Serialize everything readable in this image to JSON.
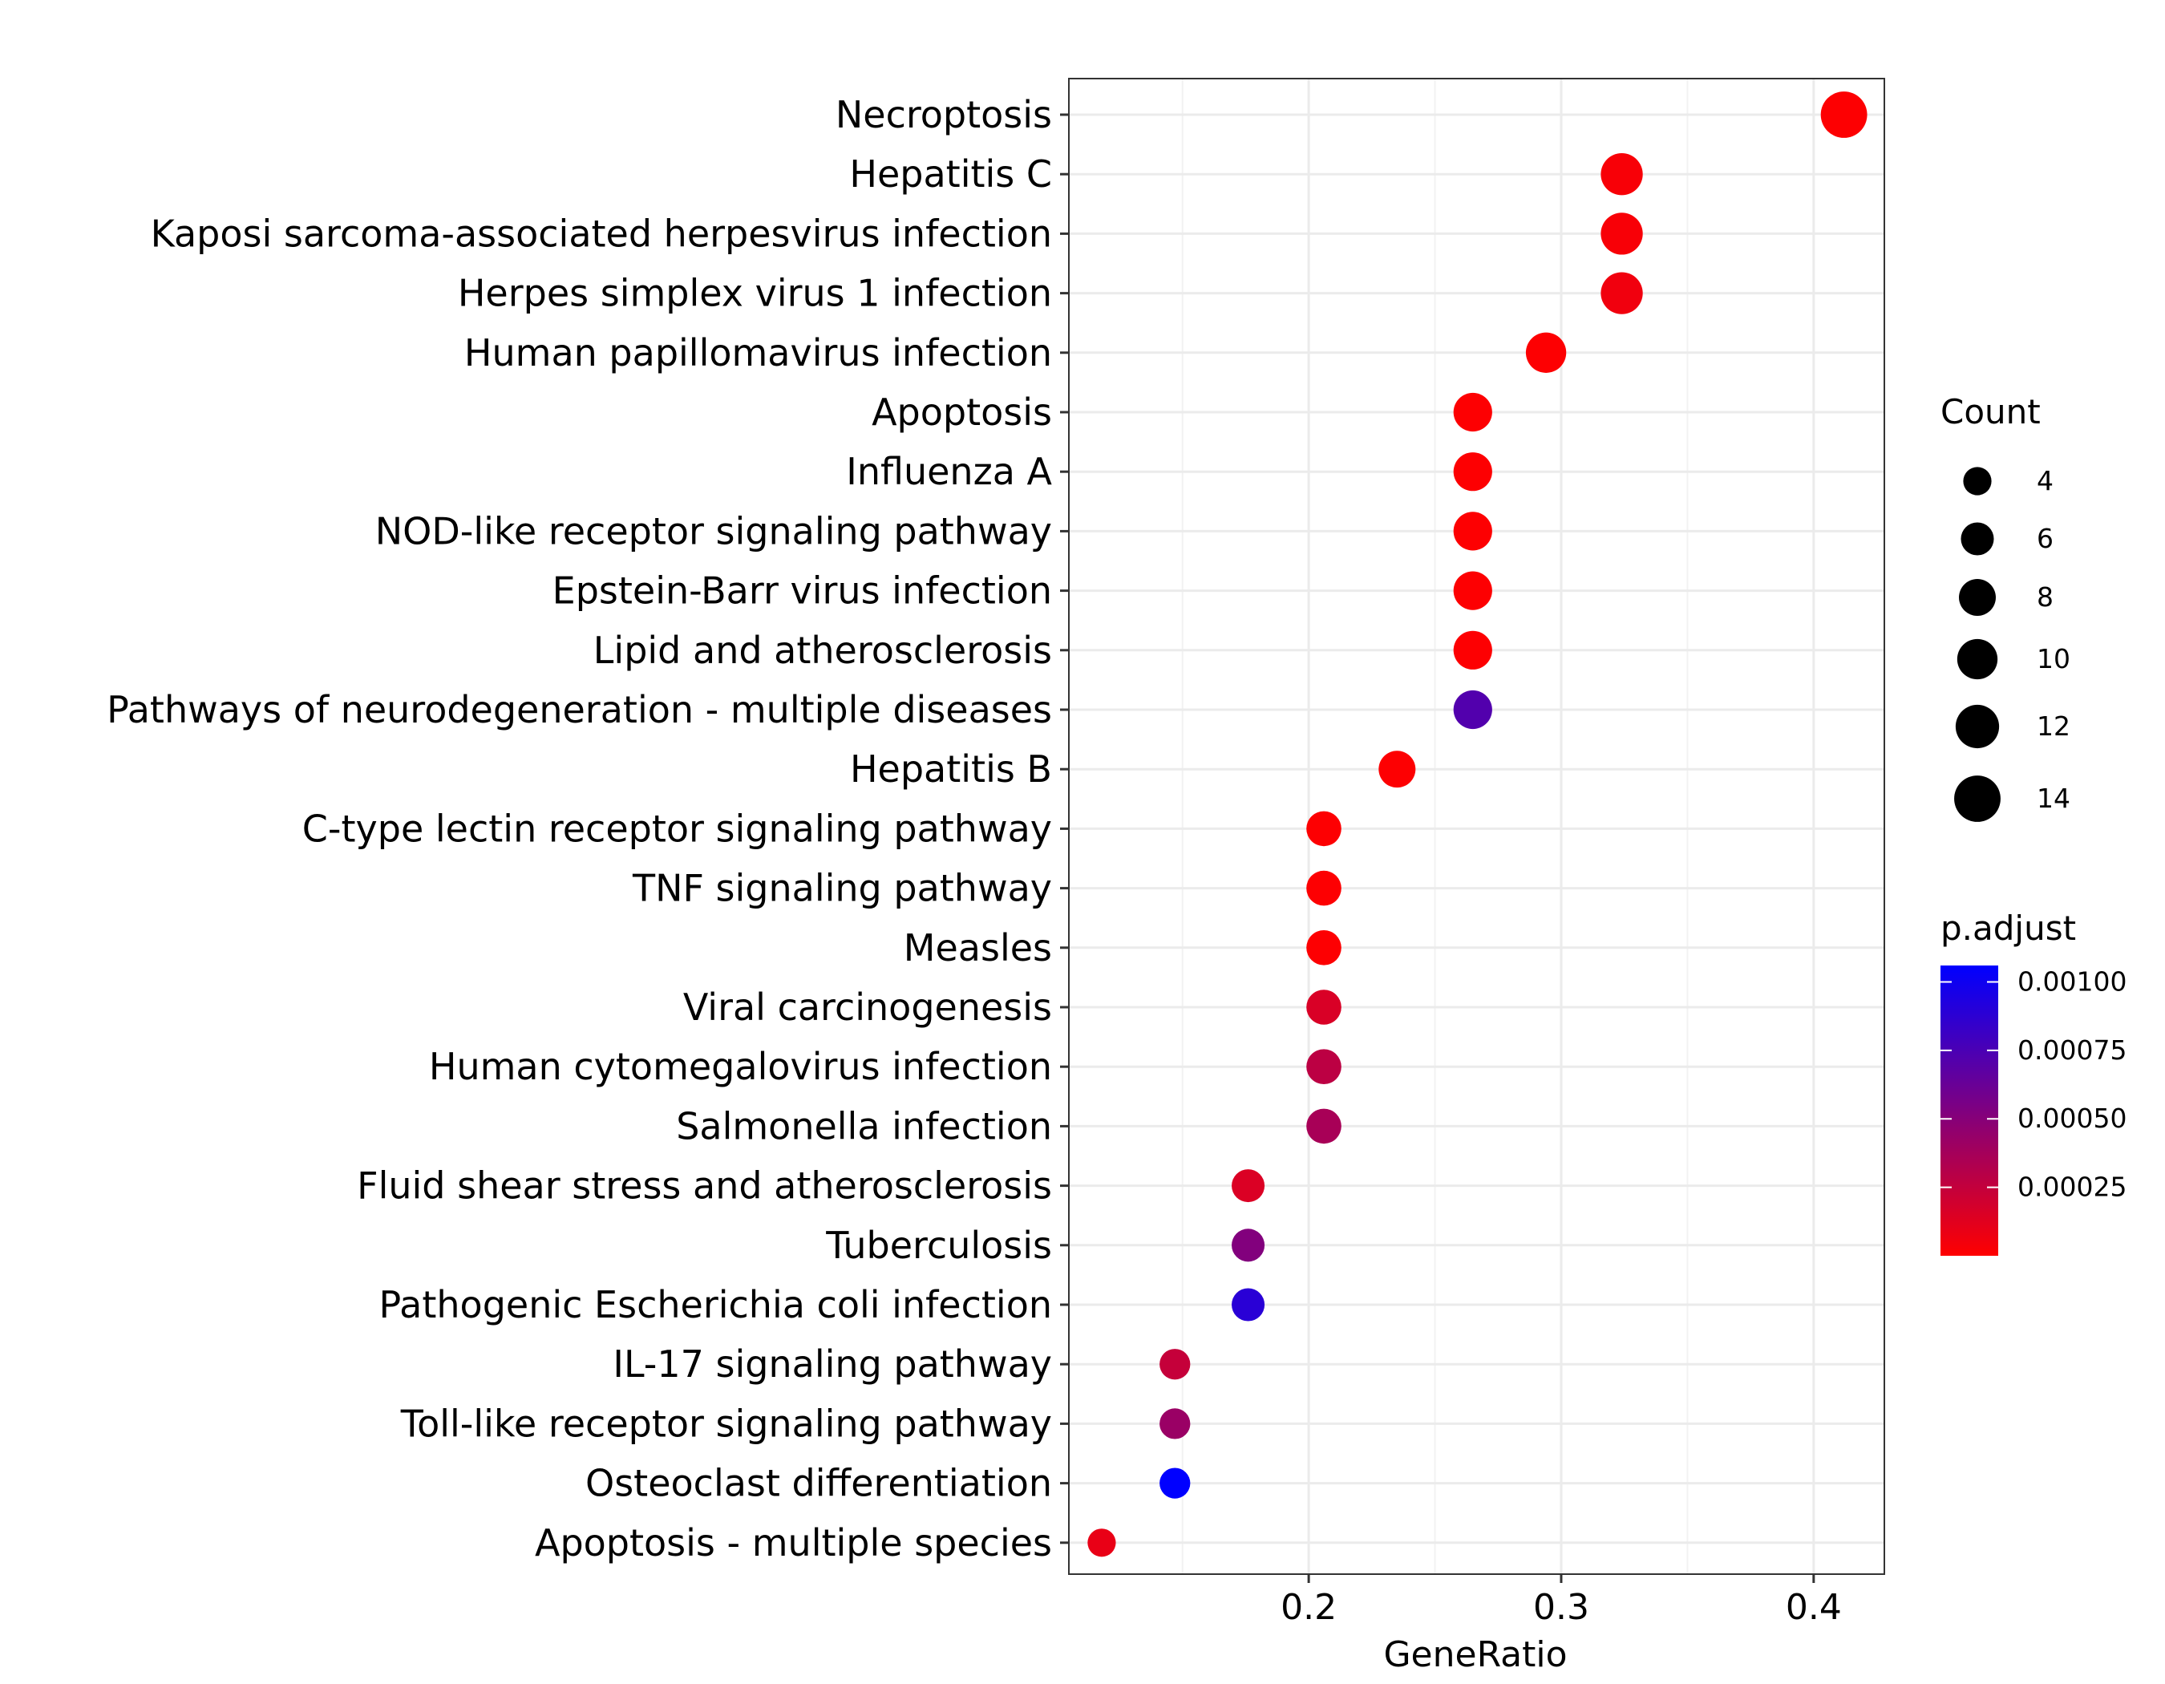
{
  "chart_data": {
    "type": "scatter",
    "xlabel": "GeneRatio",
    "xlim": [
      0.105,
      0.428
    ],
    "xticks": [
      0.2,
      0.3,
      0.4
    ],
    "xtick_labels": [
      "0.2",
      "0.3",
      "0.4"
    ],
    "grid": true,
    "legend_position": "right",
    "categories": [
      "Necroptosis",
      "Hepatitis C",
      "Kaposi sarcoma-associated herpesvirus infection",
      "Herpes simplex virus 1 infection",
      "Human papillomavirus infection",
      "Apoptosis",
      "Influenza A",
      "NOD-like receptor signaling pathway",
      "Epstein-Barr virus infection",
      "Lipid and atherosclerosis",
      "Pathways of neurodegeneration - multiple diseases",
      "Hepatitis B",
      "C-type lectin receptor signaling pathway",
      "TNF signaling pathway",
      "Measles",
      "Viral carcinogenesis",
      "Human cytomegalovirus infection",
      "Salmonella infection",
      "Fluid shear stress and atherosclerosis",
      "Tuberculosis",
      "Pathogenic Escherichia coli infection",
      "IL-17 signaling pathway",
      "Toll-like receptor signaling pathway",
      "Osteoclast differentiation",
      "Apoptosis - multiple species"
    ],
    "gene_ratio": [
      0.412,
      0.324,
      0.324,
      0.324,
      0.294,
      0.265,
      0.265,
      0.265,
      0.265,
      0.265,
      0.265,
      0.235,
      0.206,
      0.206,
      0.206,
      0.206,
      0.206,
      0.206,
      0.176,
      0.176,
      0.176,
      0.147,
      0.147,
      0.147,
      0.118
    ],
    "count": [
      14,
      11,
      11,
      11,
      10,
      9,
      9,
      9,
      9,
      9,
      9,
      8,
      7,
      7,
      7,
      7,
      7,
      7,
      6,
      6,
      6,
      5,
      5,
      5,
      4
    ],
    "p_adjust": [
      1e-05,
      3e-05,
      3e-05,
      6e-05,
      1e-05,
      1e-05,
      1e-05,
      1e-05,
      1e-05,
      1e-05,
      0.00072,
      1e-05,
      1e-05,
      1e-05,
      1e-05,
      0.00016,
      0.00028,
      0.00036,
      0.00015,
      0.00052,
      0.00089,
      0.00024,
      0.00042,
      0.00106,
      9e-05
    ],
    "size_legend": {
      "title": "Count",
      "values": [
        4,
        6,
        8,
        10,
        12,
        14
      ],
      "labels": [
        "4",
        "6",
        "8",
        "10",
        "12",
        "14"
      ]
    },
    "color_legend": {
      "title": "p.adjust",
      "range": [
        0.0,
        0.00106
      ],
      "ticks": [
        0.00025,
        0.0005,
        0.00075,
        0.001
      ],
      "tick_labels": [
        "0.00025",
        "0.00050",
        "0.00075",
        "0.00100"
      ],
      "low_color": "#ff0000",
      "high_color": "#0000ff"
    }
  }
}
